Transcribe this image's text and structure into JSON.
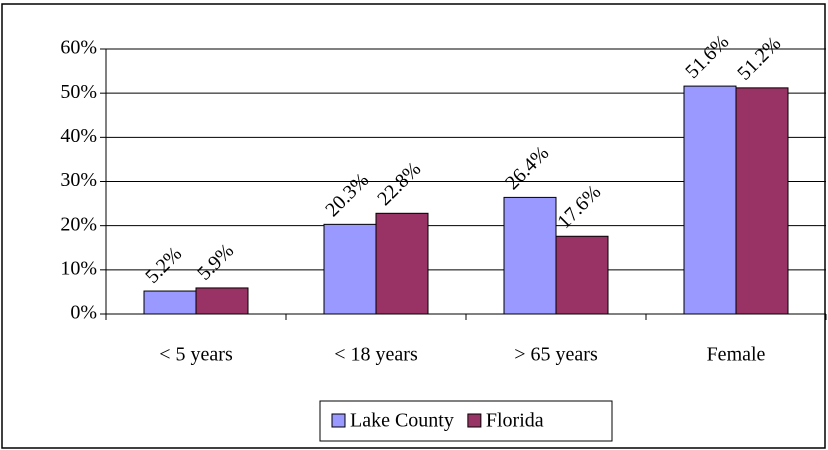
{
  "chart_data": {
    "type": "bar",
    "categories": [
      "< 5 years",
      "< 18 years",
      "> 65 years",
      "Female"
    ],
    "series": [
      {
        "name": "Lake County",
        "color": "#9999ff",
        "values": [
          5.2,
          20.3,
          26.4,
          51.6
        ],
        "value_labels": [
          "5.2%",
          "20.3%",
          "26.4%",
          "51.6%"
        ]
      },
      {
        "name": "Florida",
        "color": "#993366",
        "values": [
          5.9,
          22.8,
          17.6,
          51.2
        ],
        "value_labels": [
          "5.9%",
          "22.8%",
          "17.6%",
          "51.2%"
        ]
      }
    ],
    "ylim": [
      0,
      60
    ],
    "yticks": [
      {
        "value": 0,
        "label": "0%"
      },
      {
        "value": 10,
        "label": "10%"
      },
      {
        "value": 20,
        "label": "20%"
      },
      {
        "value": 30,
        "label": "30%"
      },
      {
        "value": 40,
        "label": "40%"
      },
      {
        "value": 50,
        "label": "50%"
      },
      {
        "value": 60,
        "label": "60%"
      }
    ],
    "grid": true,
    "legend": "bottom"
  }
}
